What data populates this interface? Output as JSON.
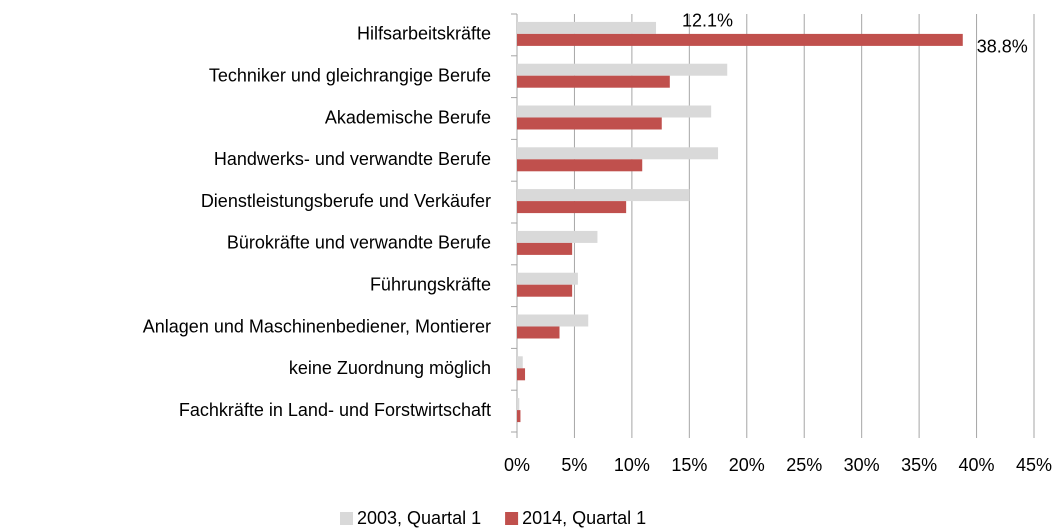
{
  "chart_data": {
    "type": "hbar",
    "categories": [
      "Hilfsarbeitskräfte",
      "Techniker und gleichrangige Berufe",
      "Akademische Berufe",
      "Handwerks- und verwandte Berufe",
      "Dienstleistungsberufe und Verkäufer",
      "Bürokräfte und verwandte Berufe",
      "Führungskräfte",
      "Anlagen und Maschinenbediener, Montierer",
      "keine Zuordnung möglich",
      "Fachkräfte in Land- und Forstwirtschaft"
    ],
    "series": [
      {
        "name": "2003, Quartal 1",
        "color": "#d9d9d9",
        "values": [
          12.1,
          18.3,
          16.9,
          17.5,
          15.0,
          7.0,
          5.3,
          6.2,
          0.5,
          0.2
        ],
        "value_labels": [
          "12.1%",
          null,
          null,
          null,
          null,
          null,
          null,
          null,
          null,
          null
        ]
      },
      {
        "name": "2014, Quartal 1",
        "color": "#c0504d",
        "values": [
          38.8,
          13.3,
          12.6,
          10.9,
          9.5,
          4.8,
          4.8,
          3.7,
          0.7,
          0.3
        ],
        "value_labels": [
          "38.8%",
          null,
          null,
          null,
          null,
          null,
          null,
          null,
          null,
          null
        ]
      }
    ],
    "xlim": [
      0,
      45
    ],
    "xticks": [
      {
        "value": 0,
        "label": "0%"
      },
      {
        "value": 5,
        "label": "5%"
      },
      {
        "value": 10,
        "label": "10%"
      },
      {
        "value": 15,
        "label": "15%"
      },
      {
        "value": 20,
        "label": "20%"
      },
      {
        "value": 25,
        "label": "25%"
      },
      {
        "value": 30,
        "label": "30%"
      },
      {
        "value": 35,
        "label": "35%"
      },
      {
        "value": 40,
        "label": "40%"
      },
      {
        "value": 45,
        "label": "45%"
      }
    ],
    "grid": true,
    "legend": "bottom"
  }
}
